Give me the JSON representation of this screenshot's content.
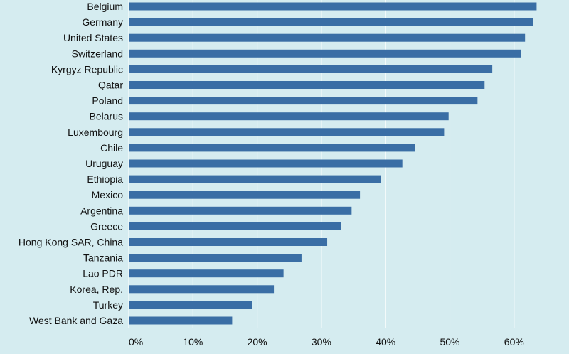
{
  "chart_data": {
    "type": "bar",
    "orientation": "horizontal",
    "title": "",
    "xlabel": "",
    "ylabel": "",
    "categories": [
      "Belgium",
      "Germany",
      "United States",
      "Switzerland",
      "Kyrgyz Republic",
      "Qatar",
      "Poland",
      "Belarus",
      "Luxembourg",
      "Chile",
      "Uruguay",
      "Ethiopia",
      "Mexico",
      "Argentina",
      "Greece",
      "Hong Kong SAR, China",
      "Tanzania",
      "Lao PDR",
      "Korea, Rep.",
      "Turkey",
      "West Bank and Gaza"
    ],
    "values": [
      63.5,
      63.0,
      61.7,
      61.1,
      56.6,
      55.4,
      54.3,
      49.8,
      49.1,
      44.6,
      42.6,
      39.3,
      36.0,
      34.7,
      33.0,
      30.9,
      26.9,
      24.1,
      22.6,
      19.2,
      16.1
    ],
    "xlim": [
      0,
      66
    ],
    "xticks": [
      0,
      10,
      20,
      30,
      40,
      50,
      60
    ],
    "xtick_labels": [
      "0%",
      "10%",
      "20%",
      "30%",
      "40%",
      "50%",
      "60%"
    ],
    "grid": true,
    "bar_color": "#3a6ea5",
    "background_color": "#d5ecf0",
    "grid_color": "#ffffff"
  }
}
